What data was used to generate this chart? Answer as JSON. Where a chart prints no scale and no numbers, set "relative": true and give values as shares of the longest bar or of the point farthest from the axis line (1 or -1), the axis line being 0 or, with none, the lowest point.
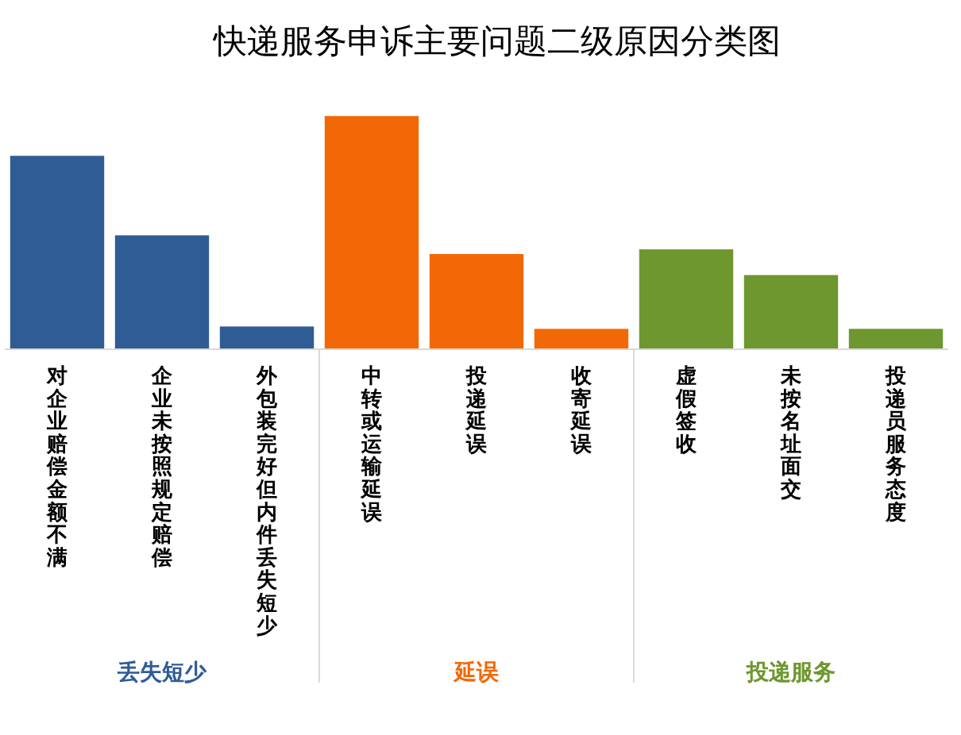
{
  "chart_data": {
    "type": "bar",
    "title": "快递服务申诉主要问题二级原因分类图",
    "categories": [
      "对企业赔偿金额不满",
      "企业未按照规定赔偿",
      "外包装完好但内件丢失短少",
      "中转或运输延误",
      "投递延误",
      "收寄延误",
      "虚假签收",
      "未按名址面交",
      "投递员服务态度"
    ],
    "relative": true,
    "stacked": true,
    "series": [
      {
        "name": "丢失短少",
        "color": "#2f5c95",
        "values": [
          0.83,
          0.49,
          0.1,
          null,
          null,
          null,
          null,
          null,
          null
        ]
      },
      {
        "name": "延误",
        "color": "#f36806",
        "values": [
          null,
          null,
          null,
          1,
          0.41,
          0.09,
          null,
          null,
          null
        ]
      },
      {
        "name": "投递服务",
        "color": "#6e972f",
        "values": [
          null,
          null,
          null,
          null,
          null,
          null,
          0.43,
          0.32,
          0.09
        ]
      }
    ]
  }
}
